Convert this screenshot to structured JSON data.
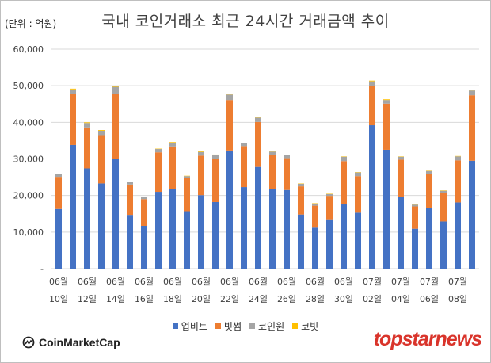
{
  "chart_data": {
    "type": "bar",
    "stacked": true,
    "title": "국내 코인거래소 최근 24시간 거래금액 추이",
    "unit_label": "(단위 : 억원)",
    "ylim": [
      0,
      60000
    ],
    "yticks": [
      "-",
      "10,000",
      "20,000",
      "30,000",
      "40,000",
      "50,000",
      "60,000"
    ],
    "grid": true,
    "legend_position": "bottom",
    "x_labels": [
      {
        "month": "06월",
        "day": "10일"
      },
      {
        "month": "06월",
        "day": "12일"
      },
      {
        "month": "06월",
        "day": "14일"
      },
      {
        "month": "06월",
        "day": "16일"
      },
      {
        "month": "06월",
        "day": "18일"
      },
      {
        "month": "06월",
        "day": "20일"
      },
      {
        "month": "06월",
        "day": "22일"
      },
      {
        "month": "06월",
        "day": "24일"
      },
      {
        "month": "06월",
        "day": "26일"
      },
      {
        "month": "06월",
        "day": "28일"
      },
      {
        "month": "06월",
        "day": "30일"
      },
      {
        "month": "07월",
        "day": "02일"
      },
      {
        "month": "07월",
        "day": "04일"
      },
      {
        "month": "07월",
        "day": "06일"
      },
      {
        "month": "07월",
        "day": "08일"
      }
    ],
    "series": [
      {
        "name": "업비트",
        "color": "#4472c4",
        "values": [
          16300,
          33800,
          27400,
          23300,
          30000,
          14700,
          11700,
          21000,
          21800,
          15700,
          20100,
          18200,
          32300,
          22300,
          27800,
          21800,
          21500,
          14800,
          11200,
          13500,
          17600,
          15300,
          39200,
          32500,
          19700,
          10900,
          16600,
          12900,
          18100,
          29500
        ]
      },
      {
        "name": "빗썸",
        "color": "#ed7d31",
        "values": [
          8800,
          14000,
          11200,
          13200,
          17800,
          8300,
          7300,
          10800,
          11600,
          9000,
          10800,
          11800,
          13800,
          11200,
          12300,
          9300,
          8700,
          7700,
          6000,
          6400,
          11800,
          10000,
          10700,
          12600,
          10100,
          6100,
          9300,
          7800,
          11500,
          17900
        ]
      },
      {
        "name": "코인원",
        "color": "#a5a5a5",
        "values": [
          700,
          1200,
          1200,
          1200,
          1900,
          700,
          600,
          900,
          1000,
          600,
          1000,
          1000,
          1500,
          800,
          1200,
          900,
          800,
          700,
          600,
          500,
          1200,
          1000,
          1300,
          1000,
          800,
          500,
          800,
          600,
          1100,
          1300
        ]
      },
      {
        "name": "코빗",
        "color": "#ffc000",
        "values": [
          100,
          200,
          200,
          200,
          300,
          100,
          100,
          100,
          200,
          100,
          200,
          200,
          200,
          100,
          200,
          200,
          100,
          100,
          100,
          100,
          100,
          100,
          200,
          200,
          100,
          100,
          100,
          100,
          100,
          200
        ]
      }
    ]
  },
  "logos": {
    "left": "CoinMarketCap",
    "right": "topstarnews"
  }
}
